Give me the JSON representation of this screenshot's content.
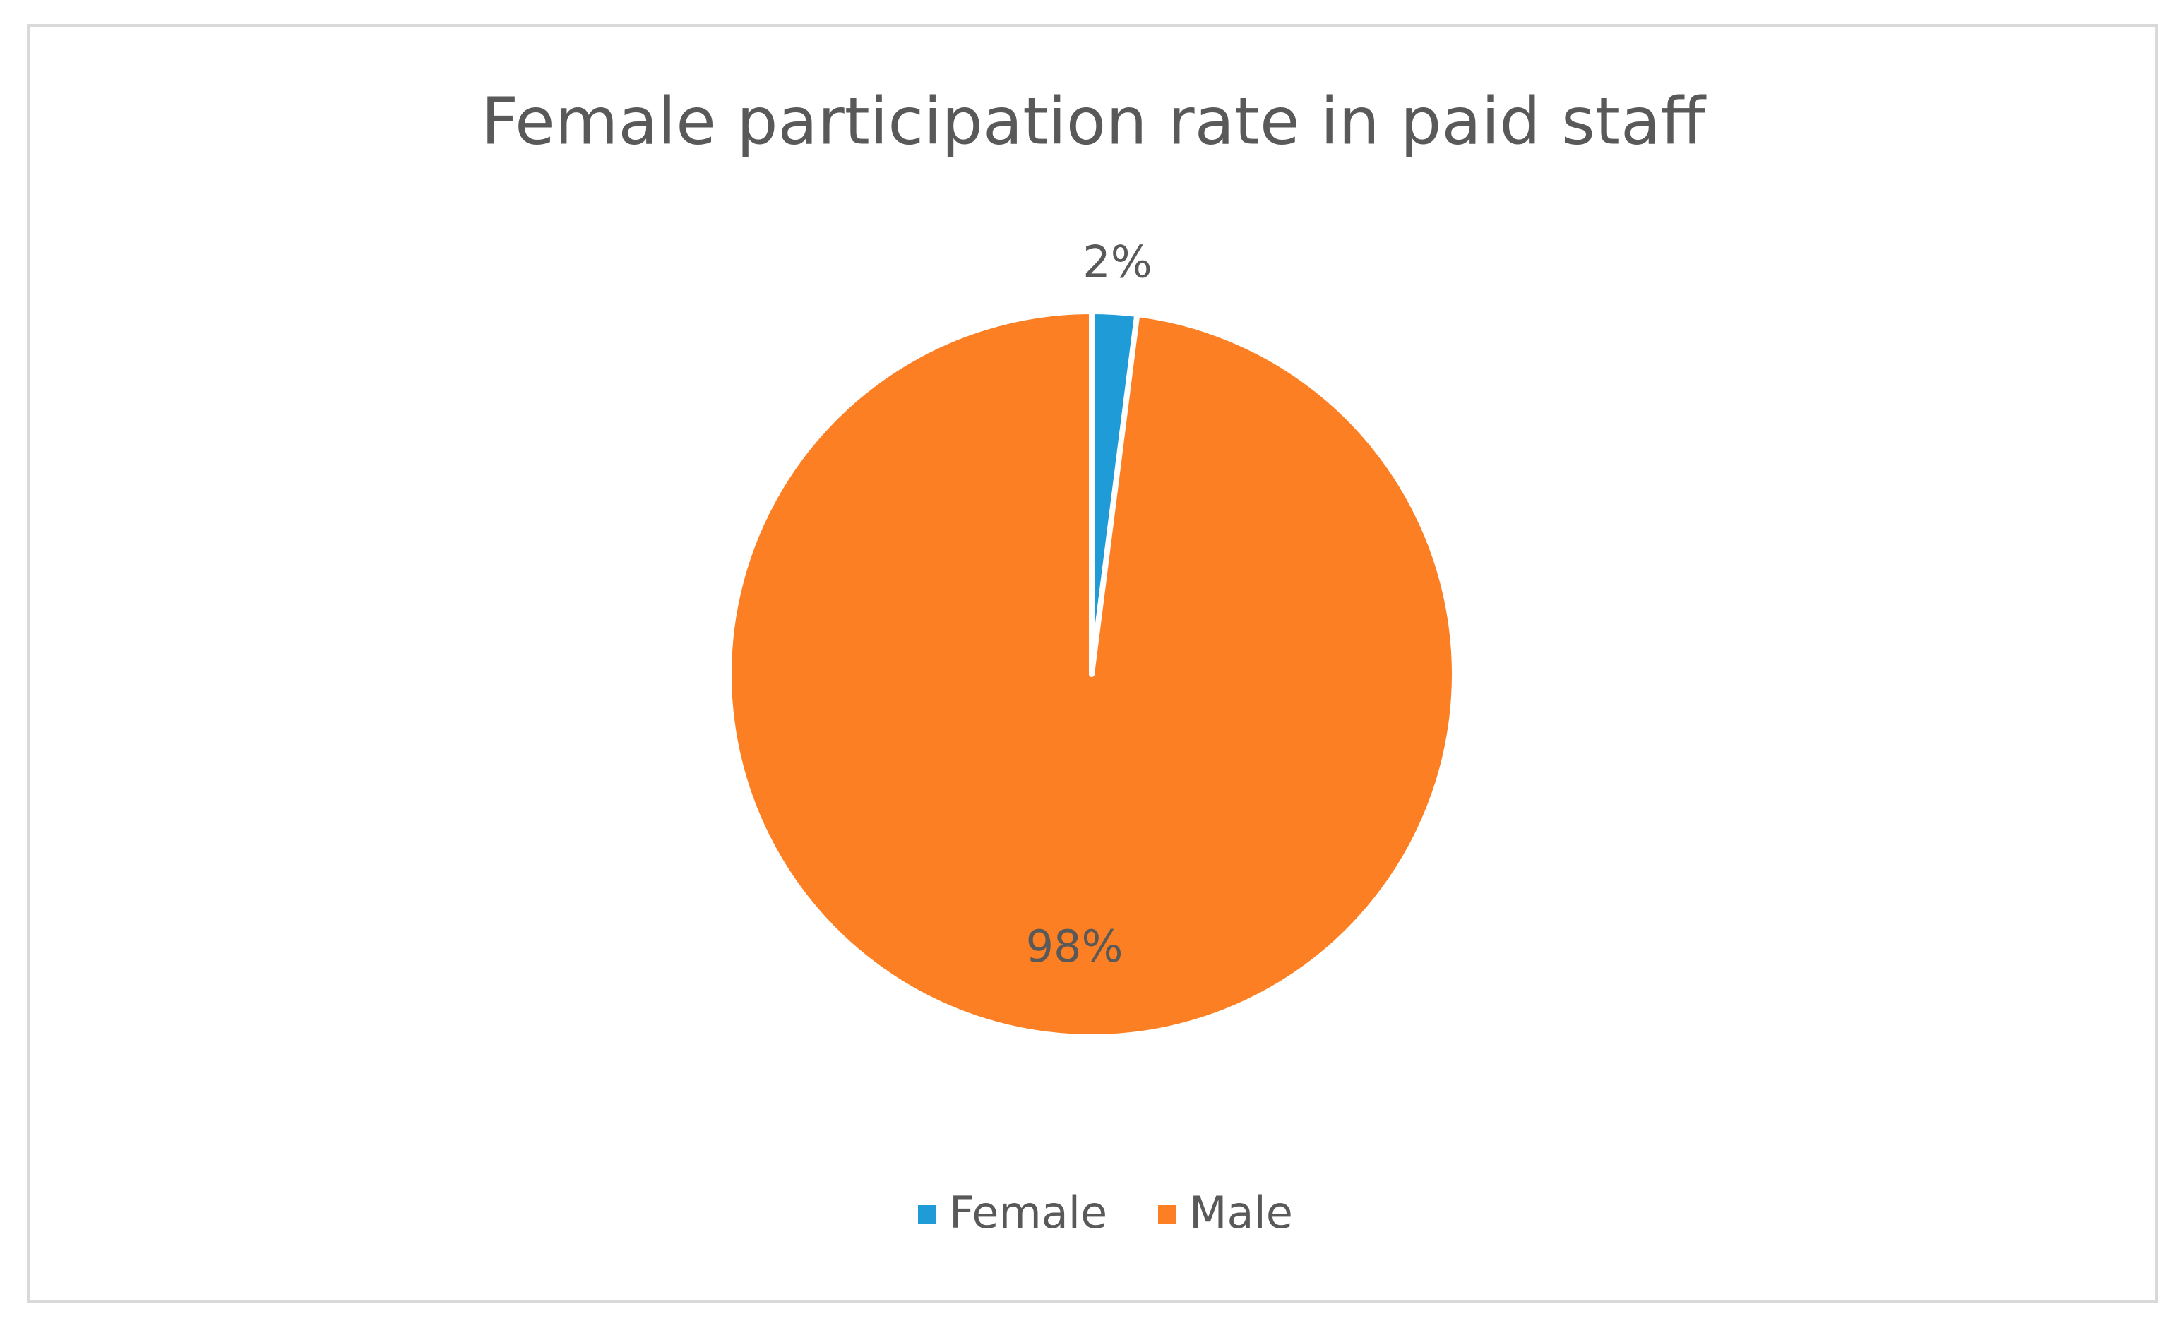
{
  "chart_data": {
    "type": "pie",
    "title": "Female participation rate in paid staff",
    "categories": [
      "Female",
      "Male"
    ],
    "values": [
      2,
      98
    ],
    "value_labels": [
      "2%",
      "98%"
    ],
    "colors": [
      "#1f9bd7",
      "#fd7f23"
    ],
    "legend": "bottom"
  }
}
